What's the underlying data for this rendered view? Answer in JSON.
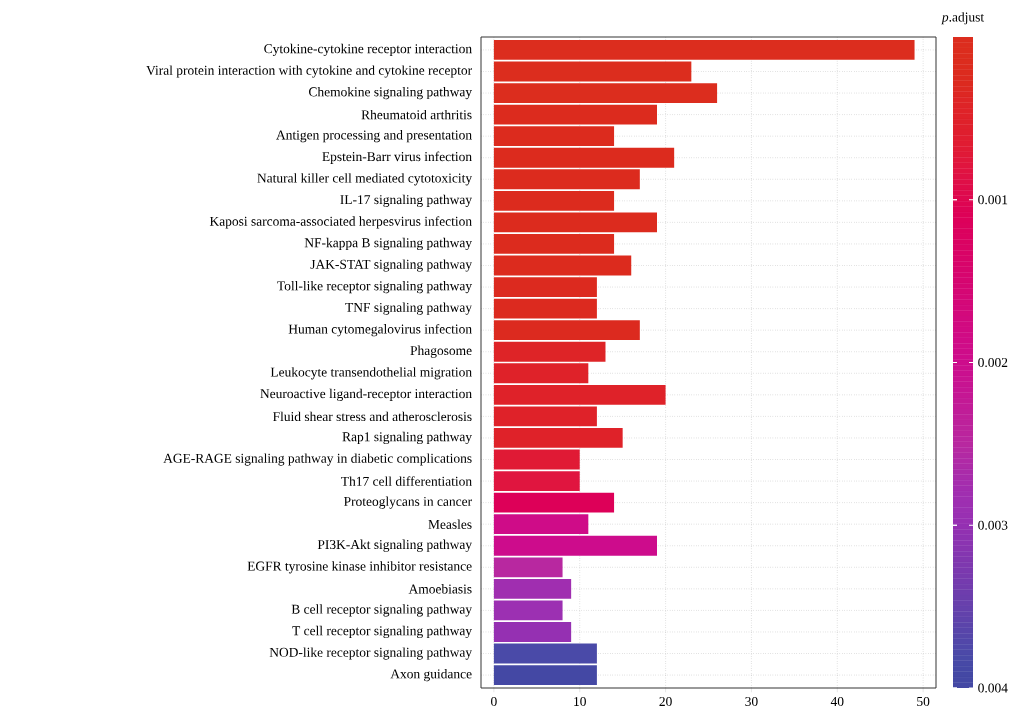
{
  "chart_data": {
    "type": "bar",
    "orientation": "horizontal",
    "clabel": "*p*.adjust",
    "categories": [
      "Cytokine-cytokine receptor interaction",
      "Viral protein interaction with cytokine and cytokine receptor",
      "Chemokine signaling pathway",
      "Rheumatoid arthritis",
      "Antigen processing and presentation",
      "Epstein-Barr virus infection",
      "Natural killer cell mediated cytotoxicity",
      "IL-17 signaling pathway",
      "Kaposi sarcoma-associated herpesvirus infection",
      "NF-kappa B signaling pathway",
      "JAK-STAT signaling pathway",
      "Toll-like receptor signaling pathway",
      "TNF signaling pathway",
      "Human cytomegalovirus infection",
      "Phagosome",
      "Leukocyte transendothelial migration",
      "Neuroactive ligand-receptor interaction",
      "Fluid shear stress and atherosclerosis",
      "Rap1 signaling pathway",
      "AGE-RAGE signaling pathway in diabetic complications",
      "Th17 cell differentiation",
      "Proteoglycans in cancer",
      "Measles",
      "PI3K-Akt signaling pathway",
      "EGFR tyrosine kinase inhibitor resistance",
      "Amoebiasis",
      "B cell receptor signaling pathway",
      "T cell receptor signaling pathway",
      "NOD-like receptor signaling pathway",
      "Axon guidance"
    ],
    "values": [
      49,
      23,
      26,
      19,
      14,
      21,
      17,
      14,
      19,
      14,
      16,
      12,
      12,
      17,
      13,
      11,
      20,
      12,
      15,
      10,
      10,
      14,
      11,
      19,
      8,
      9,
      8,
      9,
      12,
      12
    ],
    "cvalues": [
      0.0001,
      0.0001,
      0.0001,
      0.0002,
      0.0002,
      0.0002,
      0.0002,
      0.0002,
      0.0002,
      0.0002,
      0.0002,
      0.0003,
      0.0003,
      0.0003,
      0.0004,
      0.0005,
      0.0005,
      0.0005,
      0.0005,
      0.0007,
      0.0008,
      0.0011,
      0.0019,
      0.002,
      0.0025,
      0.0028,
      0.0029,
      0.003,
      0.0038,
      0.0039
    ],
    "colors": [
      "#dc2d1e",
      "#dc2d1e",
      "#dc2d1e",
      "#dc2b1e",
      "#dc2b1e",
      "#dc2b1e",
      "#dc2b1e",
      "#dc2b1e",
      "#dc2b1e",
      "#dc2b1e",
      "#dc2b1e",
      "#dc2a1f",
      "#dc2a1f",
      "#dc2a1f",
      "#de2427",
      "#df2229",
      "#df2229",
      "#df2229",
      "#df2229",
      "#e01a35",
      "#e0153f",
      "#dd0058",
      "#cf0c88",
      "#cd0c8c",
      "#b828a0",
      "#a02eb0",
      "#9c30b2",
      "#9530b2",
      "#4a4aa8",
      "#4448a4"
    ],
    "xlim": [
      -1.5,
      51.5
    ],
    "xticks": [
      0,
      10,
      20,
      30,
      40,
      50
    ],
    "clim": [
      0,
      0.004
    ],
    "cticks": [
      0.001,
      0.002,
      0.003,
      0.004
    ],
    "grid": true
  }
}
